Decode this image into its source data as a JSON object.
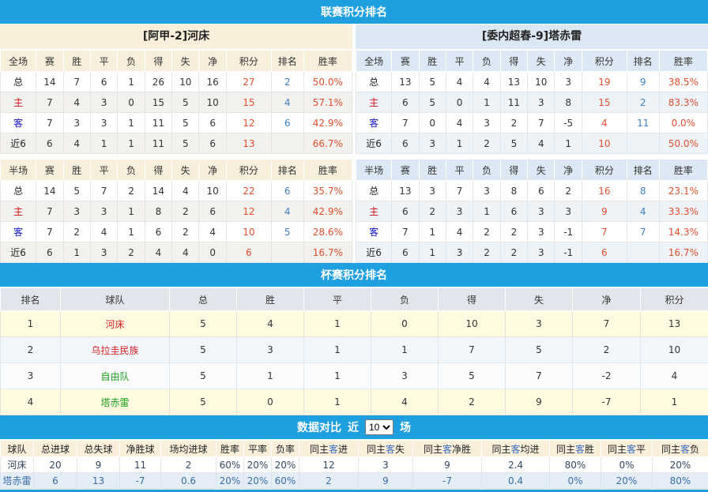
{
  "colors": {
    "bar_blue": "#1e9fdf",
    "points_red": "#e14e2d",
    "rank_blue": "#3e7fc1",
    "home_cream": "#f9efdb",
    "away_blue": "#dbe7f2",
    "highlight_yellow": "#fffbe1"
  },
  "league": {
    "title": "联赛积分排名",
    "col_headers": [
      "赛",
      "胜",
      "平",
      "负",
      "得",
      "失",
      "净",
      "积分",
      "排名",
      "胜率"
    ],
    "teams": [
      {
        "name": "[阿甲-2]河床",
        "theme": "home",
        "sections": [
          {
            "label": "全场",
            "rows": [
              {
                "label": "总",
                "label_color": "dark",
                "stats": [
                  "14",
                  "7",
                  "6",
                  "1",
                  "26",
                  "10",
                  "16"
                ],
                "points": "27",
                "rank": "2",
                "rate": "50.0%"
              },
              {
                "label": "主",
                "label_color": "red",
                "stats": [
                  "7",
                  "4",
                  "3",
                  "0",
                  "15",
                  "5",
                  "10"
                ],
                "points": "15",
                "rank": "4",
                "rate": "57.1%"
              },
              {
                "label": "客",
                "label_color": "blue",
                "stats": [
                  "7",
                  "3",
                  "3",
                  "1",
                  "11",
                  "5",
                  "6"
                ],
                "points": "12",
                "rank": "6",
                "rate": "42.9%"
              },
              {
                "label": "近6",
                "label_color": "dark",
                "stats": [
                  "6",
                  "4",
                  "1",
                  "1",
                  "11",
                  "5",
                  "6"
                ],
                "points": "13",
                "rank": "",
                "rate": "66.7%"
              }
            ]
          },
          {
            "label": "半场",
            "rows": [
              {
                "label": "总",
                "label_color": "dark",
                "stats": [
                  "14",
                  "5",
                  "7",
                  "2",
                  "14",
                  "4",
                  "10"
                ],
                "points": "22",
                "rank": "6",
                "rate": "35.7%"
              },
              {
                "label": "主",
                "label_color": "red",
                "stats": [
                  "7",
                  "3",
                  "3",
                  "1",
                  "8",
                  "2",
                  "6"
                ],
                "points": "12",
                "rank": "4",
                "rate": "42.9%"
              },
              {
                "label": "客",
                "label_color": "blue",
                "stats": [
                  "7",
                  "2",
                  "4",
                  "1",
                  "6",
                  "2",
                  "4"
                ],
                "points": "10",
                "rank": "5",
                "rate": "28.6%"
              },
              {
                "label": "近6",
                "label_color": "dark",
                "stats": [
                  "6",
                  "1",
                  "3",
                  "2",
                  "4",
                  "4",
                  "0"
                ],
                "points": "6",
                "rank": "",
                "rate": "16.7%"
              }
            ]
          }
        ]
      },
      {
        "name": "[委内超春-9]塔赤雷",
        "theme": "away",
        "sections": [
          {
            "label": "全场",
            "rows": [
              {
                "label": "总",
                "label_color": "dark",
                "stats": [
                  "13",
                  "5",
                  "4",
                  "4",
                  "13",
                  "10",
                  "3"
                ],
                "points": "19",
                "rank": "9",
                "rate": "38.5%"
              },
              {
                "label": "主",
                "label_color": "red",
                "stats": [
                  "6",
                  "5",
                  "0",
                  "1",
                  "11",
                  "3",
                  "8"
                ],
                "points": "15",
                "rank": "2",
                "rate": "83.3%"
              },
              {
                "label": "客",
                "label_color": "blue",
                "stats": [
                  "7",
                  "0",
                  "4",
                  "3",
                  "2",
                  "7",
                  "-5"
                ],
                "points": "4",
                "rank": "11",
                "rate": "0.0%"
              },
              {
                "label": "近6",
                "label_color": "dark",
                "stats": [
                  "6",
                  "3",
                  "1",
                  "2",
                  "5",
                  "4",
                  "1"
                ],
                "points": "10",
                "rank": "",
                "rate": "50.0%"
              }
            ]
          },
          {
            "label": "半场",
            "rows": [
              {
                "label": "总",
                "label_color": "dark",
                "stats": [
                  "13",
                  "3",
                  "7",
                  "3",
                  "8",
                  "6",
                  "2"
                ],
                "points": "16",
                "rank": "8",
                "rate": "23.1%"
              },
              {
                "label": "主",
                "label_color": "red",
                "stats": [
                  "6",
                  "2",
                  "3",
                  "1",
                  "6",
                  "3",
                  "3"
                ],
                "points": "9",
                "rank": "4",
                "rate": "33.3%"
              },
              {
                "label": "客",
                "label_color": "blue",
                "stats": [
                  "7",
                  "1",
                  "4",
                  "2",
                  "2",
                  "3",
                  "-1"
                ],
                "points": "7",
                "rank": "7",
                "rate": "14.3%"
              },
              {
                "label": "近6",
                "label_color": "dark",
                "stats": [
                  "6",
                  "1",
                  "3",
                  "2",
                  "2",
                  "3",
                  "-1"
                ],
                "points": "6",
                "rank": "",
                "rate": "16.7%"
              }
            ]
          }
        ]
      }
    ]
  },
  "cup": {
    "title": "杯赛积分排名",
    "headers": [
      "排名",
      "球队",
      "总",
      "胜",
      "平",
      "负",
      "得",
      "失",
      "净",
      "积分"
    ],
    "rows": [
      {
        "rank": "1",
        "team": "河床",
        "team_color": "red",
        "row_style": "hl",
        "cells": [
          "5",
          "4",
          "1",
          "0",
          "10",
          "3",
          "7",
          "13"
        ]
      },
      {
        "rank": "2",
        "team": "乌拉圭民族",
        "team_color": "red",
        "row_style": "alt1",
        "cells": [
          "5",
          "3",
          "1",
          "1",
          "7",
          "5",
          "2",
          "10"
        ]
      },
      {
        "rank": "3",
        "team": "自由队",
        "team_color": "green",
        "row_style": "alt2",
        "cells": [
          "5",
          "1",
          "1",
          "3",
          "5",
          "7",
          "-2",
          "4"
        ]
      },
      {
        "rank": "4",
        "team": "塔赤雷",
        "team_color": "green",
        "row_style": "hl",
        "cells": [
          "5",
          "0",
          "1",
          "4",
          "2",
          "9",
          "-7",
          "1"
        ]
      }
    ]
  },
  "compare": {
    "title": "数据对比",
    "near_label": "近",
    "matches_label": "场",
    "select_value": "10",
    "headers": [
      [
        "球队"
      ],
      [
        "总进球"
      ],
      [
        "总失球"
      ],
      [
        "净胜球"
      ],
      [
        "场均进球"
      ],
      [
        "胜率"
      ],
      [
        "平率"
      ],
      [
        "负率"
      ],
      [
        "同主",
        "客",
        "进"
      ],
      [
        "同主",
        "客",
        "失"
      ],
      [
        "同主",
        "客",
        "净胜"
      ],
      [
        "同主",
        "客",
        "均进"
      ],
      [
        "同主",
        "客",
        "胜"
      ],
      [
        "同主",
        "客",
        "平"
      ],
      [
        "同主",
        "客",
        "负"
      ]
    ],
    "rows": [
      {
        "team": "河床",
        "row_style": "home",
        "values": [
          "20",
          "9",
          "11",
          "2",
          "60%",
          "20%",
          "20%",
          "12",
          "3",
          "9",
          "2.4",
          "80%",
          "0%",
          "20%"
        ]
      },
      {
        "team": "塔赤雷",
        "row_style": "away",
        "values": [
          "6",
          "13",
          "-7",
          "0.6",
          "20%",
          "20%",
          "60%",
          "2",
          "9",
          "-7",
          "0.4",
          "0%",
          "20%",
          "80%"
        ]
      }
    ]
  }
}
